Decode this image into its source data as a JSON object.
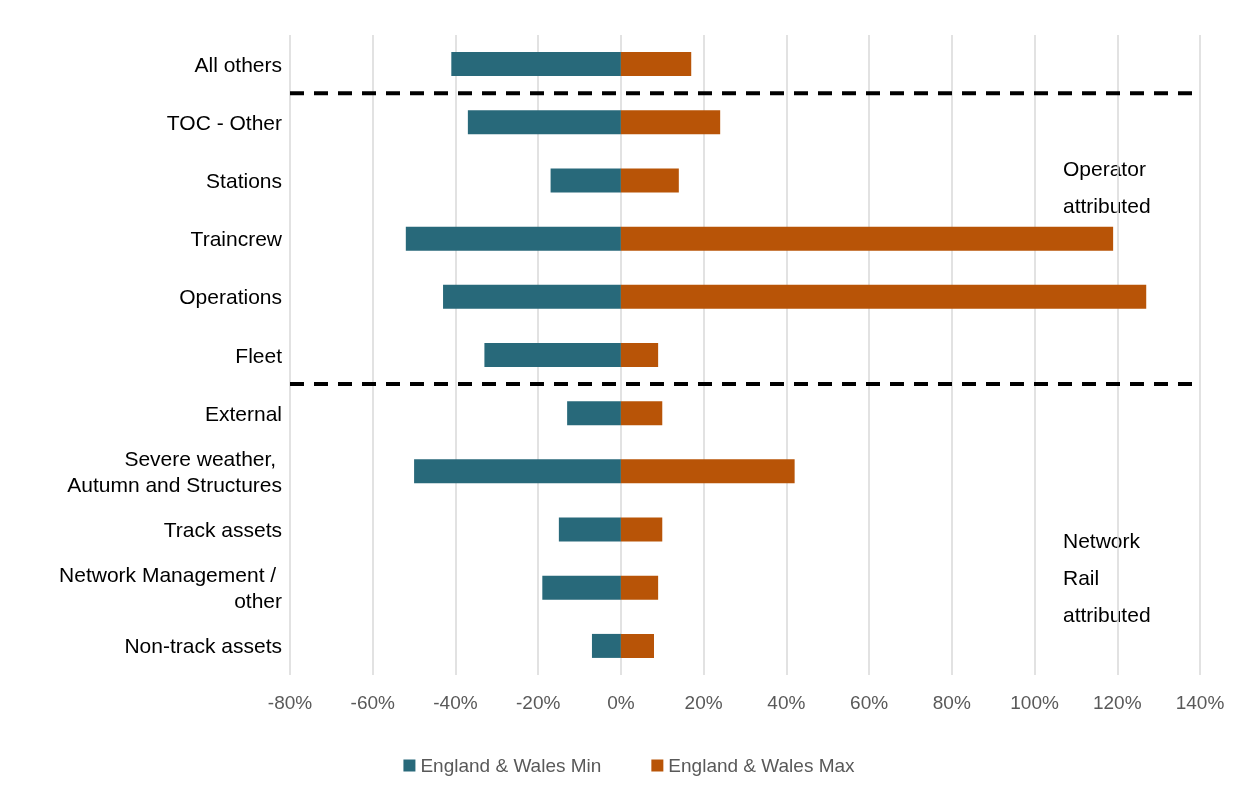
{
  "chart_data": {
    "type": "bar",
    "orientation": "horizontal",
    "categories": [
      "All others",
      "TOC - Other",
      "Stations",
      "Traincrew",
      "Operations",
      "Fleet",
      "External",
      "Severe weather, Autumn and Structures",
      "Track assets",
      "Network Management / other",
      "Non-track assets"
    ],
    "series": [
      {
        "name": "England & Wales Min",
        "color": "#28697a",
        "values": [
          -41,
          -37,
          -17,
          -52,
          -43,
          -33,
          -13,
          -50,
          -15,
          -19,
          -7
        ]
      },
      {
        "name": "England & Wales Max",
        "color": "#b85407",
        "values": [
          17,
          24,
          14,
          119,
          127,
          9,
          10,
          42,
          10,
          9,
          8
        ]
      }
    ],
    "xlim": [
      -80,
      140
    ],
    "xticks": [
      {
        "value": -80,
        "label": "-80%"
      },
      {
        "value": -60,
        "label": "-60%"
      },
      {
        "value": -40,
        "label": "-40%"
      },
      {
        "value": -20,
        "label": "-20%"
      },
      {
        "value": 0,
        "label": "0%"
      },
      {
        "value": 20,
        "label": "20%"
      },
      {
        "value": 40,
        "label": "40%"
      },
      {
        "value": 60,
        "label": "60%"
      },
      {
        "value": 80,
        "label": "80%"
      },
      {
        "value": 100,
        "label": "100%"
      },
      {
        "value": 120,
        "label": "120%"
      },
      {
        "value": 140,
        "label": "140%"
      }
    ],
    "stacked": true,
    "annotations": [
      "Operator attributed",
      "Network Rail attributed"
    ],
    "grid": "x",
    "legend": "bottom"
  }
}
